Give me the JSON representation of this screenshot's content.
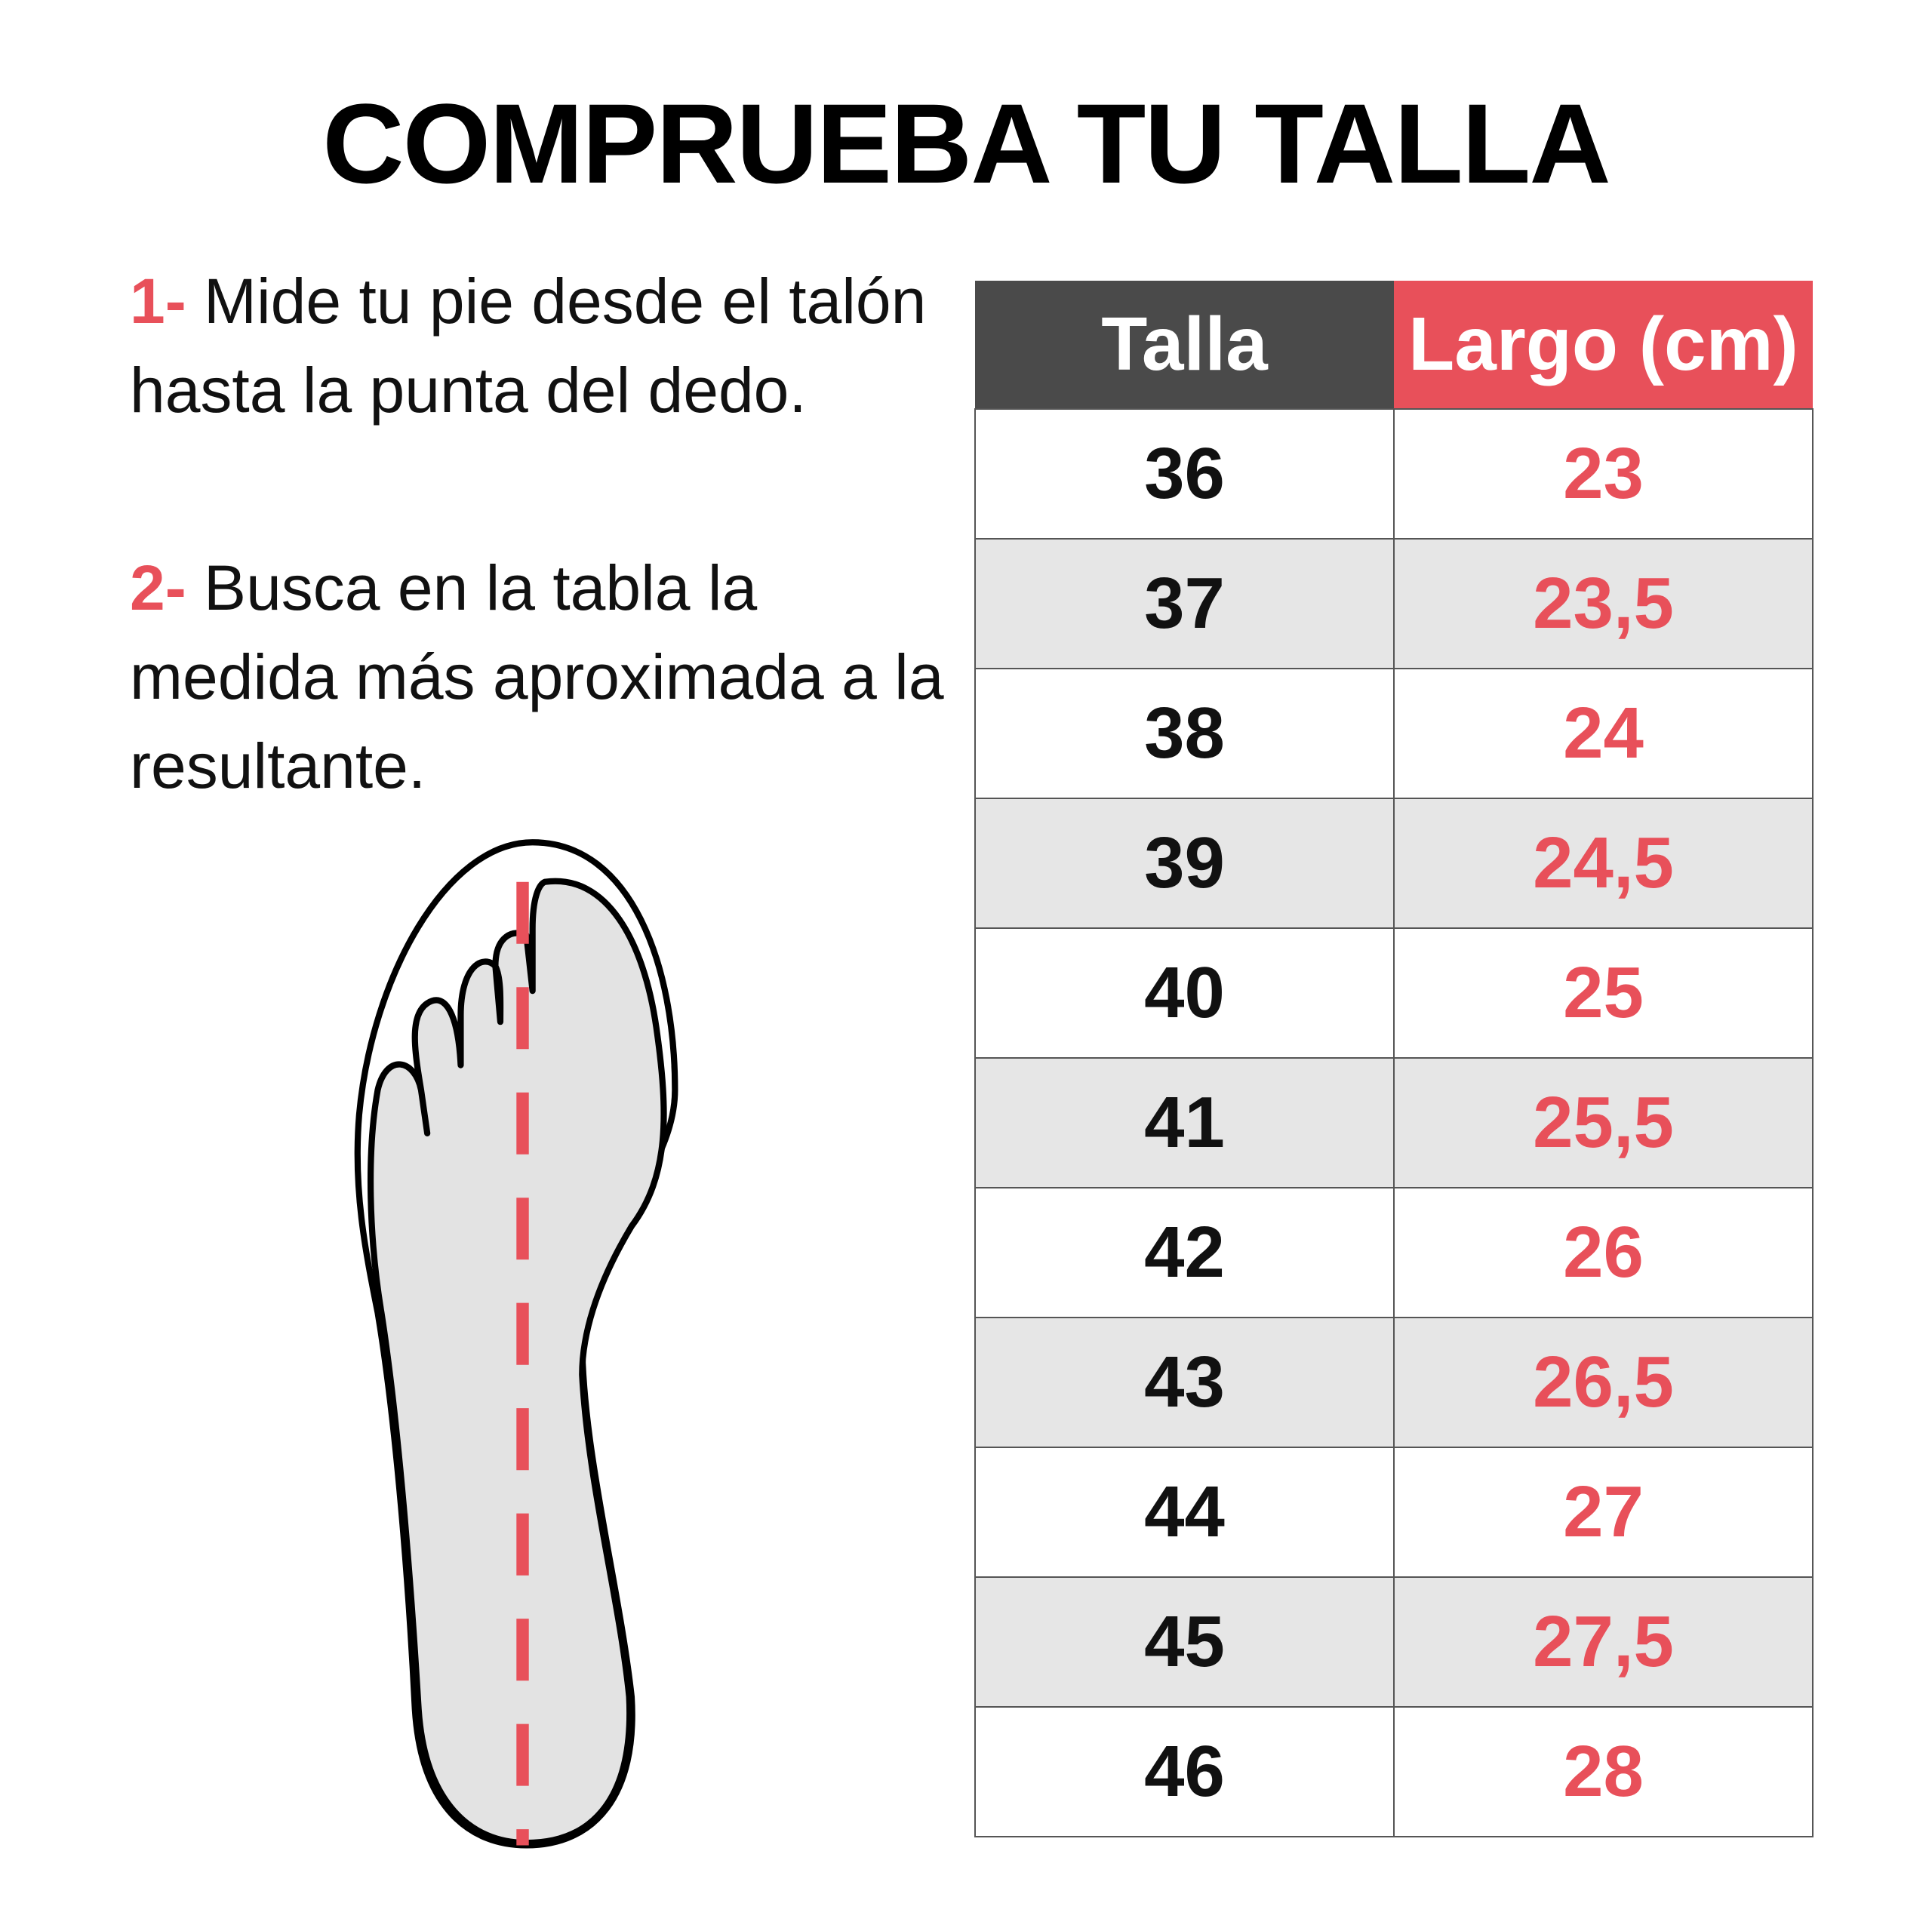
{
  "header": {
    "title": "COMPRUEBA TU TALLA"
  },
  "instructions": [
    {
      "number": "1-",
      "text": "Mide tu pie desde el talón hasta la punta del dedo."
    },
    {
      "number": "2-",
      "text": "Busca en la tabla la medida más aproximada a la resultante."
    }
  ],
  "table": {
    "columns": [
      "Talla",
      "Largo (cm)"
    ],
    "rows": [
      [
        "36",
        "23"
      ],
      [
        "37",
        "23,5"
      ],
      [
        "38",
        "24"
      ],
      [
        "39",
        "24,5"
      ],
      [
        "40",
        "25"
      ],
      [
        "41",
        "25,5"
      ],
      [
        "42",
        "26"
      ],
      [
        "43",
        "26,5"
      ],
      [
        "44",
        "27"
      ],
      [
        "45",
        "27,5"
      ],
      [
        "46",
        "28"
      ]
    ]
  }
}
